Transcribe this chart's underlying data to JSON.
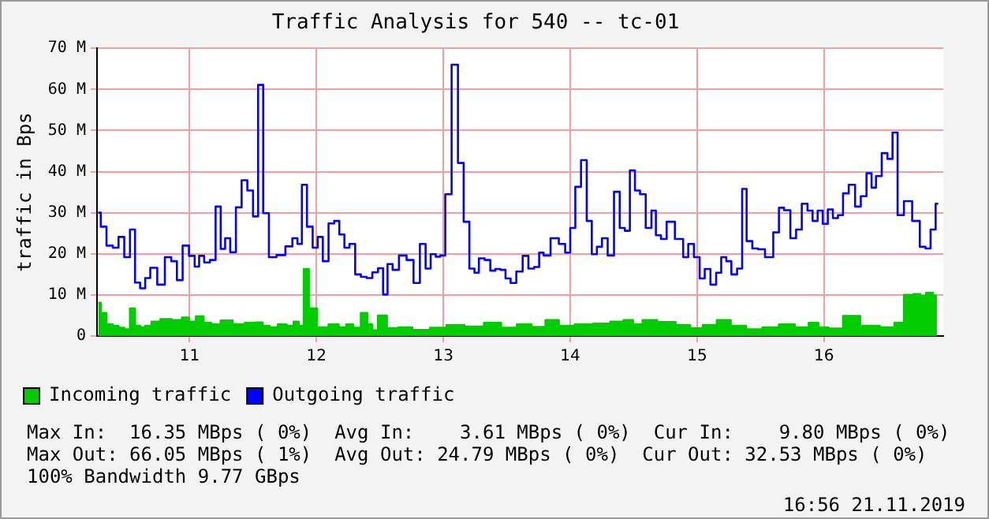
{
  "chart_data": {
    "type": "step",
    "title": "Traffic Analysis for 540 -- tc-01",
    "ylabel": "traffic in Bps",
    "xlim": [
      10.27,
      16.94
    ],
    "xticks": [
      11,
      12,
      13,
      14,
      15,
      16
    ],
    "ylim": [
      0,
      70
    ],
    "yticks": [
      {
        "value": 0,
        "label": "0"
      },
      {
        "value": 10,
        "label": "10 M"
      },
      {
        "value": 20,
        "label": "20 M"
      },
      {
        "value": 30,
        "label": "30 M"
      },
      {
        "value": 40,
        "label": "40 M"
      },
      {
        "value": 50,
        "label": "50 M"
      },
      {
        "value": 60,
        "label": "60 M"
      },
      {
        "value": 70,
        "label": "70 M"
      }
    ],
    "grid": true,
    "legend": "bottom left",
    "series": [
      {
        "name": "Incoming traffic",
        "type": "area",
        "color": "#00cc00",
        "x": [
          10.28,
          10.32,
          10.37,
          10.42,
          10.46,
          10.51,
          10.55,
          10.59,
          10.63,
          10.67,
          10.73,
          10.81,
          10.91,
          10.97,
          11.02,
          11.08,
          11.14,
          11.2,
          11.29,
          11.39,
          11.48,
          11.55,
          11.6,
          11.66,
          11.73,
          11.8,
          11.84,
          11.88,
          11.92,
          11.96,
          12.05,
          12.14,
          12.21,
          12.26,
          12.32,
          12.38,
          12.42,
          12.46,
          12.51,
          12.6,
          12.69,
          12.82,
          12.97,
          13.08,
          13.25,
          13.39,
          13.52,
          13.64,
          13.75,
          13.86,
          13.96,
          14.11,
          14.25,
          14.38,
          14.46,
          14.53,
          14.61,
          14.76,
          14.9,
          14.99,
          15.1,
          15.21,
          15.32,
          15.45,
          15.58,
          15.71,
          15.83,
          15.93,
          15.98,
          16.09,
          16.21,
          16.36,
          16.52,
          16.59,
          16.67,
          16.74,
          16.78,
          16.83,
          16.89
        ],
        "values": [
          8.1,
          5.6,
          2.8,
          2.5,
          2.0,
          1.6,
          6.7,
          2.5,
          2.1,
          2.5,
          3.5,
          4.1,
          3.9,
          4.5,
          3.5,
          4.8,
          3.2,
          2.8,
          3.8,
          2.8,
          3.2,
          3.3,
          2.5,
          2.1,
          2.8,
          2.5,
          3.5,
          2.5,
          16.3,
          6.7,
          2.1,
          2.8,
          2.1,
          2.8,
          2.0,
          5.6,
          2.8,
          1.4,
          5.0,
          1.9,
          2.1,
          1.5,
          2.0,
          2.7,
          2.3,
          3.2,
          2.0,
          2.8,
          2.2,
          3.9,
          2.5,
          2.8,
          3.0,
          3.5,
          3.9,
          2.8,
          3.9,
          3.4,
          2.7,
          1.9,
          2.7,
          3.9,
          2.5,
          1.6,
          2.1,
          2.8,
          2.1,
          3.2,
          2.1,
          1.8,
          4.9,
          2.5,
          2.1,
          3.2,
          10.0,
          10.2,
          9.8,
          10.5,
          9.8
        ]
      },
      {
        "name": "Outgoing traffic",
        "type": "step",
        "color": "#0000ff",
        "x": [
          10.28,
          10.32,
          10.37,
          10.42,
          10.46,
          10.51,
          10.55,
          10.59,
          10.63,
          10.67,
          10.71,
          10.78,
          10.83,
          10.88,
          10.92,
          10.97,
          11.02,
          11.06,
          11.09,
          11.14,
          11.18,
          11.23,
          11.26,
          11.3,
          11.34,
          11.39,
          11.43,
          11.48,
          11.52,
          11.56,
          11.6,
          11.65,
          11.72,
          11.79,
          11.83,
          11.87,
          11.9,
          11.95,
          11.99,
          12.03,
          12.07,
          12.12,
          12.16,
          12.2,
          12.24,
          12.28,
          12.33,
          12.37,
          12.42,
          12.46,
          12.51,
          12.54,
          12.58,
          12.62,
          12.68,
          12.74,
          12.79,
          12.84,
          12.88,
          12.92,
          12.96,
          12.99,
          13.04,
          13.09,
          13.14,
          13.18,
          13.23,
          13.26,
          13.3,
          13.35,
          13.39,
          13.43,
          13.47,
          13.51,
          13.55,
          13.6,
          13.65,
          13.69,
          13.74,
          13.77,
          13.81,
          13.88,
          13.94,
          13.98,
          14.02,
          14.06,
          14.11,
          14.15,
          14.19,
          14.23,
          14.27,
          14.32,
          14.37,
          14.41,
          14.45,
          14.49,
          14.53,
          14.57,
          14.62,
          14.66,
          14.69,
          14.74,
          14.78,
          14.87,
          14.91,
          14.95,
          15.0,
          15.04,
          15.08,
          15.13,
          15.17,
          15.21,
          15.25,
          15.29,
          15.34,
          15.37,
          15.41,
          15.46,
          15.5,
          15.57,
          15.63,
          15.66,
          15.71,
          15.76,
          15.8,
          15.85,
          15.89,
          15.93,
          15.97,
          16.01,
          16.05,
          16.09,
          16.13,
          16.17,
          16.22,
          16.27,
          16.31,
          16.36,
          16.39,
          16.43,
          16.48,
          16.52,
          16.56,
          16.6,
          16.66,
          16.73,
          16.78,
          16.82,
          16.86,
          16.9
        ],
        "values": [
          30.0,
          26.6,
          22.0,
          21.5,
          24.1,
          19.2,
          25.9,
          13.0,
          11.6,
          14.1,
          16.6,
          12.5,
          19.2,
          18.2,
          13.6,
          22.0,
          19.5,
          16.9,
          19.5,
          17.9,
          18.5,
          31.5,
          21.2,
          23.8,
          20.4,
          31.3,
          37.9,
          35.4,
          29.1,
          61.1,
          29.9,
          19.2,
          19.7,
          21.8,
          23.8,
          22.4,
          36.8,
          26.6,
          21.5,
          24.1,
          18.2,
          27.4,
          28.0,
          24.7,
          21.5,
          22.4,
          15.0,
          14.4,
          14.1,
          15.5,
          16.5,
          10.1,
          17.5,
          16.1,
          19.6,
          18.5,
          12.9,
          22.4,
          16.4,
          19.9,
          19.3,
          19.6,
          34.5,
          66.0,
          42.1,
          27.8,
          16.4,
          15.4,
          18.9,
          18.5,
          15.9,
          16.3,
          16.1,
          14.0,
          12.9,
          15.7,
          19.5,
          16.4,
          16.8,
          20.3,
          19.6,
          23.8,
          22.4,
          20.3,
          26.3,
          36.3,
          42.8,
          28.0,
          19.9,
          21.7,
          23.8,
          19.6,
          35.1,
          26.3,
          25.6,
          40.3,
          35.4,
          34.5,
          26.3,
          30.5,
          24.5,
          23.6,
          27.8,
          23.6,
          19.2,
          22.4,
          19.2,
          14.0,
          16.3,
          12.5,
          15.4,
          19.2,
          18.2,
          15.0,
          16.4,
          35.8,
          23.1,
          21.3,
          21.1,
          19.2,
          25.2,
          31.2,
          30.6,
          23.8,
          25.9,
          32.2,
          30.5,
          28.0,
          30.5,
          27.3,
          30.8,
          28.7,
          29.4,
          34.7,
          36.8,
          31.5,
          34.0,
          39.6,
          36.1,
          38.9,
          44.5,
          43.1,
          49.5,
          29.4,
          32.8,
          28.0,
          21.7,
          21.3,
          25.9,
          32.2
        ]
      }
    ],
    "annotations": [
      "Max In:  16.35 MBps ( 0%)  Avg In:    3.61 MBps ( 0%)  Cur In:    9.80 MBps ( 0%)",
      "Max Out: 66.05 MBps ( 1%)  Avg Out: 24.79 MBps ( 0%)  Cur Out: 32.53 MBps ( 0%)",
      "100% Bandwidth 9.77 GBps",
      "16:56 21.11.2019"
    ]
  }
}
